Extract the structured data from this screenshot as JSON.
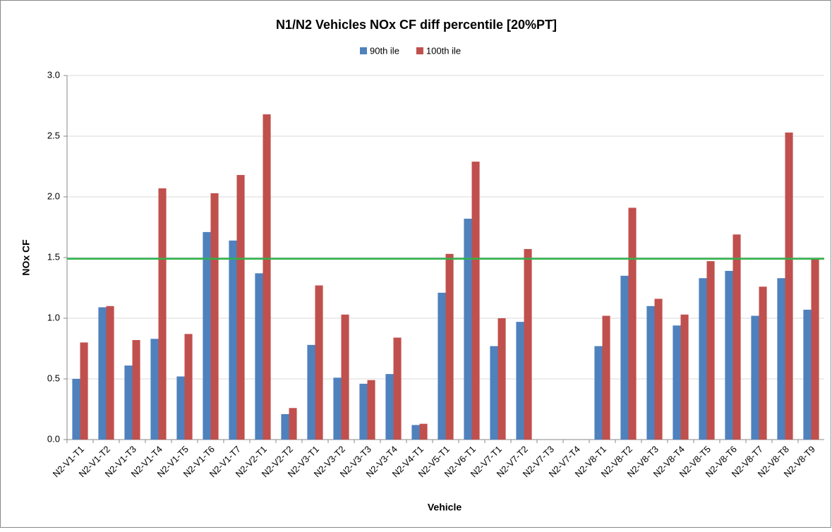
{
  "chart_data": {
    "type": "bar",
    "title": "N1/N2 Vehicles NOx CF diff percentile [20%PT]",
    "x_label": "Vehicle",
    "y_label": "NOx CF",
    "categories": [
      "N2-V1-T1",
      "N2-V1-T2",
      "N2-V1-T3",
      "N2-V1-T4",
      "N2-V1-T5",
      "N2-V1-T6",
      "N2-V1-T7",
      "N2-V2-T1",
      "N2-V2-T2",
      "N2-V3-T1",
      "N2-V3-T2",
      "N2-V3-T3",
      "N2-V3-T4",
      "N2-V4-T1",
      "N2-V5-T1",
      "N2-V6-T1",
      "N2-V7-T1",
      "N2-V7-T2",
      "N2-V7-T3",
      "N2-V7-T4",
      "N2-V8-T1",
      "N2-V8-T2",
      "N2-V8-T3",
      "N2-V8-T4",
      "N2-V8-T5",
      "N2-V8-T6",
      "N2-V8-T7",
      "N2-V8-T8",
      "N2-V8-T9"
    ],
    "series": [
      {
        "name": "90th ile",
        "color": "#4f81bd",
        "values": [
          0.5,
          1.09,
          0.61,
          0.83,
          0.52,
          1.71,
          1.64,
          1.37,
          0.21,
          0.78,
          0.51,
          0.46,
          0.54,
          0.12,
          1.21,
          1.82,
          0.77,
          0.97,
          null,
          null,
          0.77,
          1.35,
          1.1,
          0.94,
          1.33,
          1.39,
          1.02,
          1.33,
          1.07
        ]
      },
      {
        "name": "100th ile",
        "color": "#c0504d",
        "values": [
          0.8,
          1.1,
          0.82,
          2.07,
          0.87,
          2.03,
          2.18,
          2.68,
          0.26,
          1.27,
          1.03,
          0.49,
          0.84,
          0.13,
          1.53,
          2.29,
          1.0,
          1.57,
          null,
          null,
          1.02,
          1.91,
          1.16,
          1.03,
          1.47,
          1.69,
          1.26,
          2.53,
          1.49
        ]
      }
    ],
    "reference_line": {
      "value": 1.49,
      "color": "#2eb34a"
    },
    "ylim": [
      0,
      3
    ],
    "yticks": [
      {
        "value": 0,
        "label": "0.0"
      },
      0.5,
      {
        "value": 1,
        "label": "1.0"
      },
      1.5,
      {
        "value": 2,
        "label": "2.0"
      },
      2.5,
      {
        "value": 3,
        "label": "3.0"
      }
    ],
    "grid": true,
    "legend": "top"
  }
}
